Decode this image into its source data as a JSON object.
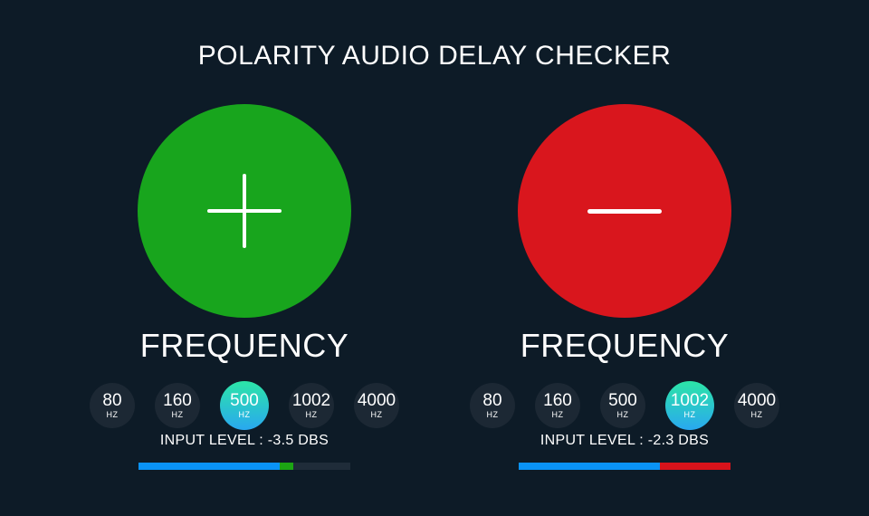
{
  "title": "POLARITY AUDIO DELAY CHECKER",
  "colors": {
    "background": "#0d1b27",
    "text": "#ffffff",
    "inactive_button": "#1c2834",
    "active_button_top": "#2ce5a7",
    "active_button_bottom": "#29a8f0",
    "positive_circle": "#18a51d",
    "negative_circle": "#d9161d",
    "bar_blue": "#0a93f5",
    "bar_green": "#1ca513",
    "bar_red": "#d8131b",
    "bar_track": "#1f2c39"
  },
  "channels": [
    {
      "polarity": "positive",
      "symbol": "plus",
      "circle_color": "#18a51d",
      "section_label": "FREQUENCY",
      "frequencies": [
        {
          "value": "80",
          "unit": "HZ",
          "active": false
        },
        {
          "value": "160",
          "unit": "HZ",
          "active": false
        },
        {
          "value": "500",
          "unit": "HZ",
          "active": true
        },
        {
          "value": "1002",
          "unit": "HZ",
          "active": false
        },
        {
          "value": "4000",
          "unit": "HZ",
          "active": false
        }
      ],
      "active_frequency": "500 HZ",
      "input_level_text": "INPUT LEVEL : -3.5 DBS",
      "input_level_value": "-3.5 DBS",
      "bar": {
        "segments": [
          {
            "name": "blue",
            "color": "#0a93f5",
            "width": "66.7%"
          },
          {
            "name": "green",
            "color": "#1ca513",
            "width": "6.4%"
          }
        ]
      }
    },
    {
      "polarity": "negative",
      "symbol": "minus",
      "circle_color": "#d9161d",
      "section_label": "FREQUENCY",
      "frequencies": [
        {
          "value": "80",
          "unit": "HZ",
          "active": false
        },
        {
          "value": "160",
          "unit": "HZ",
          "active": false
        },
        {
          "value": "500",
          "unit": "HZ",
          "active": false
        },
        {
          "value": "1002",
          "unit": "HZ",
          "active": true
        },
        {
          "value": "4000",
          "unit": "HZ",
          "active": false
        }
      ],
      "active_frequency": "1002 HZ",
      "input_level_text": "INPUT LEVEL : -2.3 DBS",
      "input_level_value": "-2.3 DBS",
      "bar": {
        "segments": [
          {
            "name": "blue",
            "color": "#0a93f5",
            "width": "66.7%"
          },
          {
            "name": "red",
            "color": "#d8131b",
            "width": "33.3%"
          }
        ]
      }
    }
  ]
}
